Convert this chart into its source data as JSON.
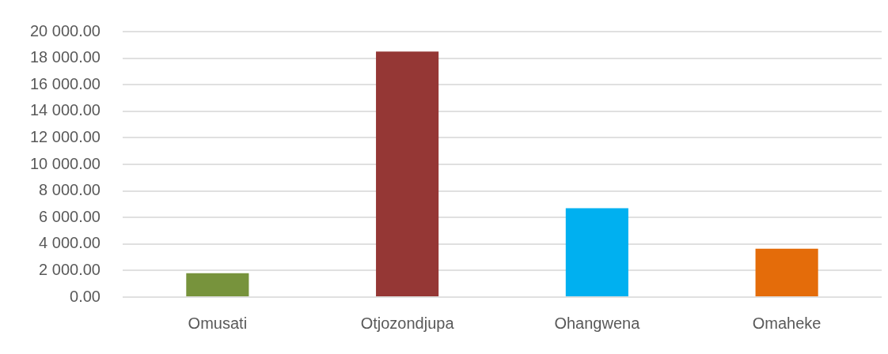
{
  "chart_data": {
    "type": "bar",
    "categories": [
      "Omusati",
      "Otjozondjupa",
      "Ohangwena",
      "Omaheke"
    ],
    "values": [
      1800,
      18500,
      6700,
      3650
    ],
    "colors": [
      "#77933c",
      "#953735",
      "#00b0f0",
      "#e46c0a"
    ],
    "ylim": [
      0,
      20000
    ],
    "yticks": [
      {
        "value": 0,
        "label": "0.00"
      },
      {
        "value": 2000,
        "label": "2 000.00"
      },
      {
        "value": 4000,
        "label": "4 000.00"
      },
      {
        "value": 6000,
        "label": "6 000.00"
      },
      {
        "value": 8000,
        "label": "8 000.00"
      },
      {
        "value": 10000,
        "label": "10 000.00"
      },
      {
        "value": 12000,
        "label": "12 000.00"
      },
      {
        "value": 14000,
        "label": "14 000.00"
      },
      {
        "value": 16000,
        "label": "16 000.00"
      },
      {
        "value": 18000,
        "label": "18 000.00"
      },
      {
        "value": 20000,
        "label": "20 000.00"
      }
    ],
    "grid": "y",
    "legend": false
  }
}
